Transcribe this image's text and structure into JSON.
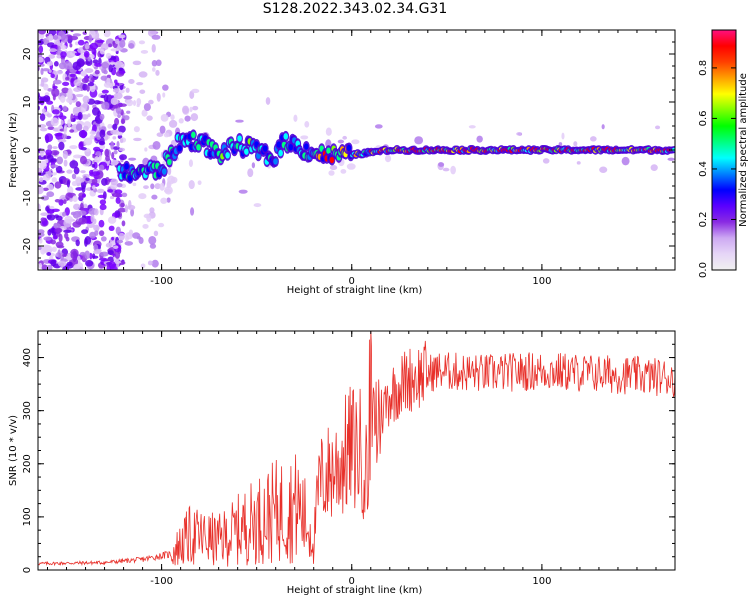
{
  "title": "S128.2022.343.02.34.G31",
  "chart_data": [
    {
      "type": "heatmap",
      "xlabel": "Height of straight line (km)",
      "ylabel": "Frequency (Hz)",
      "xlim": [
        -165,
        170
      ],
      "ylim": [
        -25,
        25
      ],
      "x_ticks": [
        -100,
        0,
        100
      ],
      "x_tick_labels": [
        "-100",
        "0",
        "100"
      ],
      "y_ticks": [
        -20,
        -10,
        0,
        10,
        20
      ],
      "y_tick_labels": [
        "-20",
        "-10",
        "0",
        "10",
        "20"
      ],
      "grid": false,
      "colorbar": {
        "label": "Normalized spectral amplitude",
        "range": [
          0,
          0.95
        ],
        "ticks": [
          0,
          0.2,
          0.4,
          0.6,
          0.8
        ],
        "tick_labels": [
          "0.0",
          "0.2",
          "0.4",
          "0.6",
          "0.8"
        ],
        "colormap": [
          "#f0f0f0",
          "#e6d6f7",
          "#cda9f2",
          "#8a2be2",
          "#5a00ff",
          "#0000ff",
          "#0080ff",
          "#00ffff",
          "#00ff80",
          "#00ff00",
          "#80ff00",
          "#ffff00",
          "#ffa000",
          "#ff4000",
          "#ff0000",
          "#ff1080"
        ]
      },
      "ridge": [
        {
          "x": -122,
          "y": -5
        },
        {
          "x": -110,
          "y": -4.5
        },
        {
          "x": -100,
          "y": -4
        },
        {
          "x": -95,
          "y": -1
        },
        {
          "x": -90,
          "y": 2
        },
        {
          "x": -80,
          "y": 2
        },
        {
          "x": -70,
          "y": -1
        },
        {
          "x": -60,
          "y": 1
        },
        {
          "x": -50,
          "y": 0
        },
        {
          "x": -42,
          "y": -2
        },
        {
          "x": -35,
          "y": 2
        },
        {
          "x": -25,
          "y": 0
        },
        {
          "x": -15,
          "y": -1
        },
        {
          "x": 0,
          "y": -1
        },
        {
          "x": 20,
          "y": 0
        },
        {
          "x": 60,
          "y": 0
        },
        {
          "x": 100,
          "y": 0
        },
        {
          "x": 170,
          "y": 0
        }
      ]
    },
    {
      "type": "line",
      "xlabel": "Height of straight line (km)",
      "ylabel": "SNR (10 * v/v)",
      "xlim": [
        -165,
        170
      ],
      "ylim": [
        0,
        450
      ],
      "x_ticks": [
        -100,
        0,
        100
      ],
      "x_tick_labels": [
        "-100",
        "0",
        "100"
      ],
      "y_ticks": [
        0,
        100,
        200,
        300,
        400
      ],
      "y_tick_labels": [
        "0",
        "100",
        "200",
        "300",
        "400"
      ],
      "grid": false,
      "series": [
        {
          "color": "#e8302a",
          "envelope": [
            {
              "x": -165,
              "y": 12
            },
            {
              "x": -130,
              "y": 14
            },
            {
              "x": -110,
              "y": 20
            },
            {
              "x": -95,
              "y": 30
            },
            {
              "x": -85,
              "y": 65
            },
            {
              "x": -70,
              "y": 55
            },
            {
              "x": -55,
              "y": 85
            },
            {
              "x": -40,
              "y": 110
            },
            {
              "x": -28,
              "y": 120
            },
            {
              "x": -20,
              "y": 60
            },
            {
              "x": -17,
              "y": 165
            },
            {
              "x": -8,
              "y": 195
            },
            {
              "x": 0,
              "y": 230
            },
            {
              "x": 5,
              "y": 225
            },
            {
              "x": 10,
              "y": 150
            },
            {
              "x": 12,
              "y": 270
            },
            {
              "x": 20,
              "y": 330
            },
            {
              "x": 30,
              "y": 360
            },
            {
              "x": 45,
              "y": 375
            },
            {
              "x": 70,
              "y": 370
            },
            {
              "x": 100,
              "y": 375
            },
            {
              "x": 140,
              "y": 368
            },
            {
              "x": 170,
              "y": 362
            }
          ]
        }
      ]
    }
  ]
}
